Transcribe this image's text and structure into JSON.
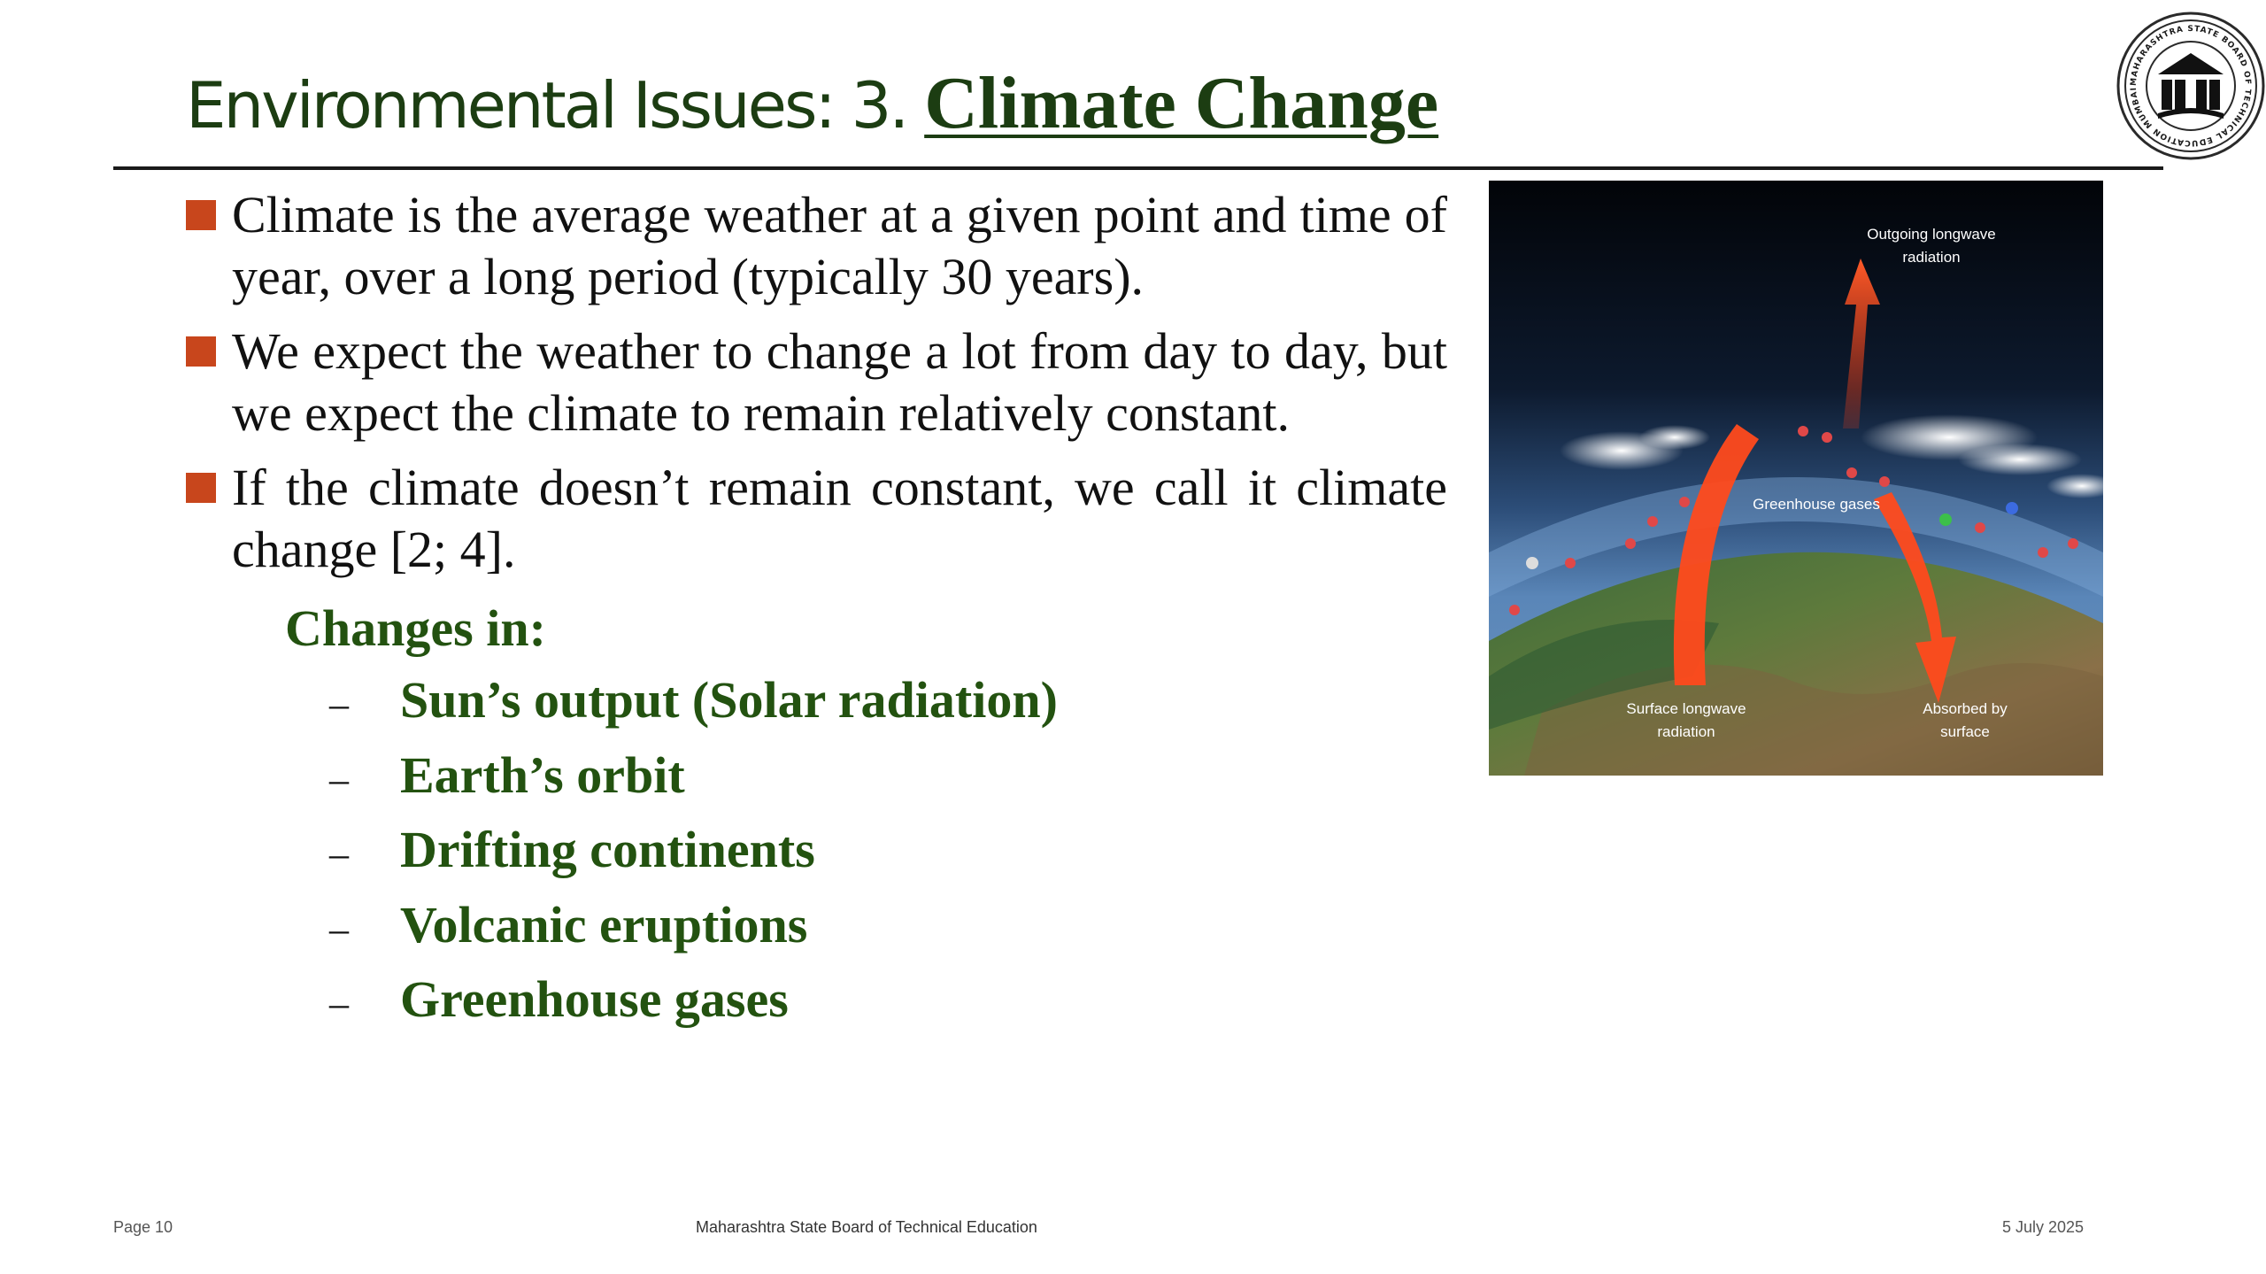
{
  "title": {
    "prefix": "Environmental Issues:  3. ",
    "main": "Climate  Change"
  },
  "logo": {
    "name": "institution-seal",
    "ring_text": "MAHARASHTRA STATE BOARD OF TECHNICAL EDUCATION MUMBAI"
  },
  "bullets": [
    {
      "text": "Climate is the average weather at a given point and time of year, over a long period (typically 30 years)."
    },
    {
      "text": "We expect the weather to change a lot from day to day, but we expect the climate to remain relatively constant."
    },
    {
      "text": "If the climate doesn’t remain constant, we call it climate change [2; 4]."
    }
  ],
  "changes": {
    "heading": "Changes in:",
    "dash": "–",
    "items": [
      "Sun’s output (Solar radiation)",
      "Earth’s orbit",
      "Drifting continents",
      "Volcanic eruptions",
      "Greenhouse gases"
    ]
  },
  "diagram": {
    "labels": {
      "outgoing_1": "Outgoing longwave",
      "outgoing_2": "radiation",
      "greenhouse": "Greenhouse gases",
      "surface_1": "Surface longwave",
      "surface_2": "radiation",
      "absorbed_1": "Absorbed by",
      "absorbed_2": "surface"
    }
  },
  "footer": {
    "page": "Page 10",
    "org": "Maharashtra State Board of Technical Education",
    "date": "5 July 2025"
  },
  "colors": {
    "title": "#1c3d12",
    "bullet_marker": "#c8461c",
    "changes_text": "#235210",
    "arrow": "#ff4a1c"
  }
}
